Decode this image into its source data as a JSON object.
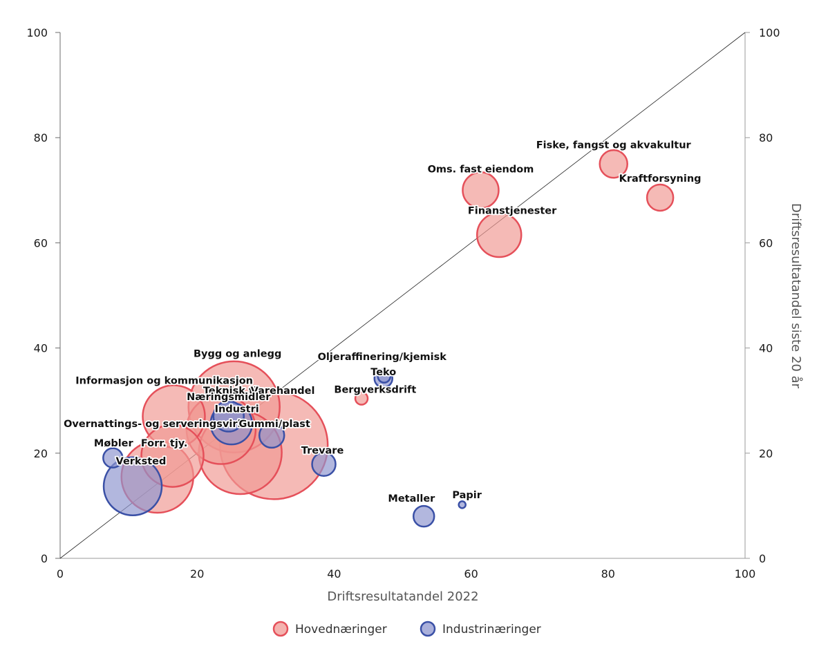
{
  "chart_data": {
    "type": "scatter",
    "subtype": "bubble",
    "title": "",
    "xlabel": "Driftsresultatandel 2022",
    "ylabel": "Driftsresultatandel siste 20 år",
    "xlim": [
      0,
      100
    ],
    "ylim": [
      0,
      100
    ],
    "x_ticks": [
      "0",
      "20",
      "40",
      "60",
      "80",
      "100"
    ],
    "y_ticks_left": [
      "0",
      "20",
      "40",
      "60",
      "80",
      "100"
    ],
    "y_ticks_right": [
      "0",
      "20",
      "40",
      "60",
      "80",
      "100"
    ],
    "grid": false,
    "reference_line": {
      "label": "45-degree line",
      "from": [
        0,
        0
      ],
      "to": [
        100,
        100
      ]
    },
    "legend_position": "bottom-center",
    "colors": {
      "hoved_fill": "#f09a94",
      "hoved_stroke": "#e5505a",
      "industri_fill": "#8e95cf",
      "industri_stroke": "#3a50a6"
    },
    "series": [
      {
        "name": "Hovednæringer",
        "key": "hoved",
        "points": [
          {
            "label": "Fiske, fangst og akvakultur",
            "x": 80.8,
            "y": 75.0,
            "size": 20
          },
          {
            "label": "Kraftforsyning",
            "x": 87.6,
            "y": 68.6,
            "size": 19
          },
          {
            "label": "Oms. fast eiendom",
            "x": 61.4,
            "y": 70.0,
            "size": 26
          },
          {
            "label": "Finanstjenester",
            "x": 64.1,
            "y": 61.5,
            "size": 32
          },
          {
            "label": "Bergverksdrift",
            "x": 44.0,
            "y": 30.4,
            "size": 9
          },
          {
            "label": "Bygg og anlegg",
            "x": 25.4,
            "y": 28.8,
            "size": 66
          },
          {
            "label": "Informasjon og kommunikasjon",
            "x": 16.6,
            "y": 27.0,
            "size": 45
          },
          {
            "label": "Teknisk tjy.",
            "x": 23.5,
            "y": 24.5,
            "size": 50
          },
          {
            "label": "Varehandel",
            "x": 31.2,
            "y": 21.5,
            "size": 78
          },
          {
            "label": "Overnattings- og serveringsvirks.",
            "x": 26.3,
            "y": 20.1,
            "size": 60
          },
          {
            "label": "Forr. tjy.",
            "x": 16.4,
            "y": 19.5,
            "size": 45
          },
          {
            "label": "",
            "x": 14.2,
            "y": 15.5,
            "size": 52
          }
        ]
      },
      {
        "name": "Industrinæringer",
        "key": "industri",
        "points": [
          {
            "label": "Oljeraffinering/kjemisk",
            "x": 47.2,
            "y": 34.2,
            "size": 13
          },
          {
            "label": "Teko",
            "x": 47.3,
            "y": 34.6,
            "size": 9
          },
          {
            "label": "Næringsmidler",
            "x": 24.6,
            "y": 27.0,
            "size": 22
          },
          {
            "label": "Industri",
            "x": 25.0,
            "y": 25.6,
            "size": 30
          },
          {
            "label": "Gummi/plast",
            "x": 30.9,
            "y": 23.4,
            "size": 18
          },
          {
            "label": "Trevare",
            "x": 38.5,
            "y": 17.9,
            "size": 17
          },
          {
            "label": "Møbler",
            "x": 7.7,
            "y": 19.1,
            "size": 14
          },
          {
            "label": "Verksted",
            "x": 10.6,
            "y": 13.7,
            "size": 42
          },
          {
            "label": "Metaller",
            "x": 53.1,
            "y": 8.0,
            "size": 15
          },
          {
            "label": "Papir",
            "x": 58.7,
            "y": 10.2,
            "size": 5
          }
        ]
      }
    ],
    "labels": [
      {
        "text": "Fiske, fangst og akvakultur",
        "x": 80.8,
        "y": 78.0
      },
      {
        "text": "Kraftforsyning",
        "x": 87.6,
        "y": 71.6
      },
      {
        "text": "Oms. fast eiendom",
        "x": 61.4,
        "y": 73.4
      },
      {
        "text": "Finanstjenester",
        "x": 66.0,
        "y": 65.5
      },
      {
        "text": "Bergverksdrift",
        "x": 46.0,
        "y": 31.5
      },
      {
        "text": "Oljeraffinering/kjemisk",
        "x": 47.0,
        "y": 37.7
      },
      {
        "text": "Teko",
        "x": 47.2,
        "y": 34.8
      },
      {
        "text": "Bygg og anlegg",
        "x": 25.9,
        "y": 38.3
      },
      {
        "text": "Informasjon og kommunikasjon",
        "x": 15.2,
        "y": 33.2
      },
      {
        "text": "Teknisk tjy.",
        "x": 25.5,
        "y": 31.3
      },
      {
        "text": "Varehandel",
        "x": 32.5,
        "y": 31.3
      },
      {
        "text": "Næringsmidler",
        "x": 24.6,
        "y": 30.1
      },
      {
        "text": "Industri",
        "x": 25.8,
        "y": 27.8
      },
      {
        "text": "Overnattings- og serveringsvirks.",
        "x": 14.4,
        "y": 25.0
      },
      {
        "text": "Gummi/plast",
        "x": 31.3,
        "y": 25.0
      },
      {
        "text": "Forr. tjy.",
        "x": 15.2,
        "y": 21.3
      },
      {
        "text": "Møbler",
        "x": 7.8,
        "y": 21.3
      },
      {
        "text": "Verksted",
        "x": 11.8,
        "y": 17.9
      },
      {
        "text": "Trevare",
        "x": 38.3,
        "y": 19.9
      },
      {
        "text": "Metaller",
        "x": 51.3,
        "y": 10.8
      },
      {
        "text": "Papir",
        "x": 59.4,
        "y": 11.4
      }
    ],
    "legend": [
      {
        "label": "Hovednæringer",
        "key": "hoved"
      },
      {
        "label": "Industrinæringer",
        "key": "industri"
      }
    ]
  }
}
